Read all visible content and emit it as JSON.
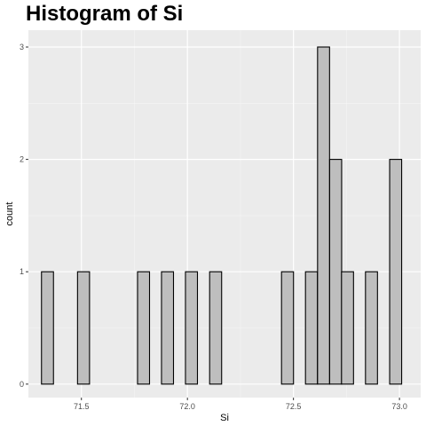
{
  "chart_data": {
    "type": "histogram",
    "title": "Histogram of Si",
    "xlabel": "Si",
    "ylabel": "count",
    "xlim": [
      71.25,
      73.1
    ],
    "ylim": [
      -0.12,
      3.15
    ],
    "x_ticks": [
      71.5,
      72.0,
      72.5,
      73.0
    ],
    "x_tick_labels": [
      "71.5",
      "72.0",
      "72.5",
      "73.0"
    ],
    "y_ticks": [
      0,
      1,
      2,
      3
    ],
    "y_tick_labels": [
      "0",
      "1",
      "2",
      "3"
    ],
    "bin_width": 0.0566,
    "bins": [
      {
        "x": 71.34,
        "count": 1
      },
      {
        "x": 71.397,
        "count": 0
      },
      {
        "x": 71.453,
        "count": 0
      },
      {
        "x": 71.51,
        "count": 1
      },
      {
        "x": 71.567,
        "count": 0
      },
      {
        "x": 71.623,
        "count": 0
      },
      {
        "x": 71.68,
        "count": 0
      },
      {
        "x": 71.736,
        "count": 0
      },
      {
        "x": 71.793,
        "count": 1
      },
      {
        "x": 71.85,
        "count": 0
      },
      {
        "x": 71.906,
        "count": 1
      },
      {
        "x": 71.963,
        "count": 0
      },
      {
        "x": 72.019,
        "count": 1
      },
      {
        "x": 72.076,
        "count": 0
      },
      {
        "x": 72.133,
        "count": 1
      },
      {
        "x": 72.189,
        "count": 0
      },
      {
        "x": 72.246,
        "count": 0
      },
      {
        "x": 72.302,
        "count": 0
      },
      {
        "x": 72.359,
        "count": 0
      },
      {
        "x": 72.416,
        "count": 0
      },
      {
        "x": 72.472,
        "count": 1
      },
      {
        "x": 72.529,
        "count": 0
      },
      {
        "x": 72.585,
        "count": 1
      },
      {
        "x": 72.642,
        "count": 3
      },
      {
        "x": 72.699,
        "count": 2
      },
      {
        "x": 72.755,
        "count": 1
      },
      {
        "x": 72.812,
        "count": 0
      },
      {
        "x": 72.868,
        "count": 1
      },
      {
        "x": 72.925,
        "count": 0
      },
      {
        "x": 72.982,
        "count": 2
      }
    ],
    "colors": {
      "panel": "#ebebeb",
      "grid_major": "#ffffff",
      "grid_minor": "#f5f5f5",
      "bar_fill": "#bebebe",
      "bar_stroke": "#000000",
      "tick": "#333333"
    }
  }
}
